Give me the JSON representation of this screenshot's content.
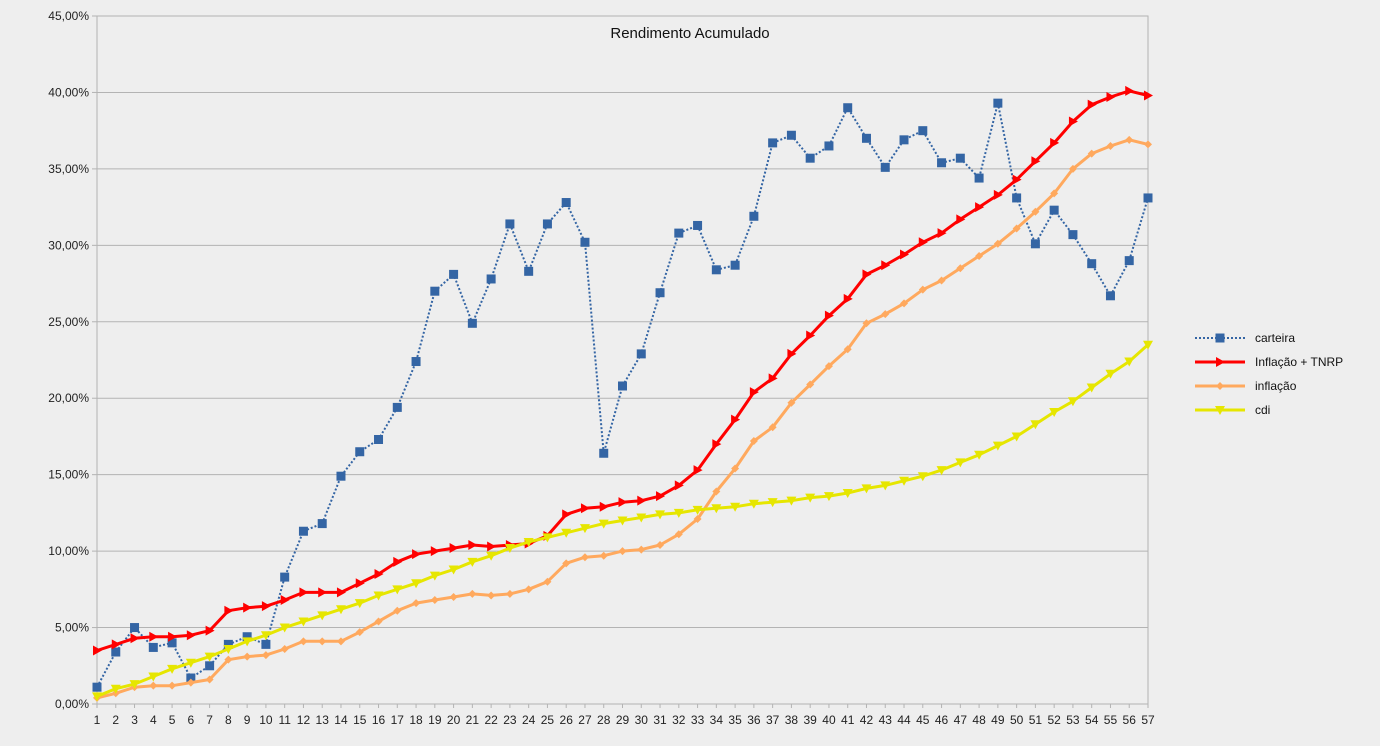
{
  "chart_data": {
    "type": "line",
    "title": "Rendimento Acumulado",
    "xlabel": "",
    "ylabel": "",
    "x": [
      1,
      2,
      3,
      4,
      5,
      6,
      7,
      8,
      9,
      10,
      11,
      12,
      13,
      14,
      15,
      16,
      17,
      18,
      19,
      20,
      21,
      22,
      23,
      24,
      25,
      26,
      27,
      28,
      29,
      30,
      31,
      32,
      33,
      34,
      35,
      36,
      37,
      38,
      39,
      40,
      41,
      42,
      43,
      44,
      45,
      46,
      47,
      48,
      49,
      50,
      51,
      52,
      53,
      54,
      55,
      56,
      57
    ],
    "ylim": [
      0,
      45
    ],
    "y_ticks": [
      0,
      5,
      10,
      15,
      20,
      25,
      30,
      35,
      40,
      45
    ],
    "y_tick_labels": [
      "0,00%",
      "5,00%",
      "10,00%",
      "15,00%",
      "20,00%",
      "25,00%",
      "30,00%",
      "35,00%",
      "40,00%",
      "45,00%"
    ],
    "grid": "horizontal",
    "legend_position": "right",
    "series": [
      {
        "name": "carteira",
        "color": "#3465a4",
        "line_style": "dotted",
        "marker": "square",
        "values": [
          1.1,
          3.4,
          5.0,
          3.7,
          4.0,
          1.7,
          2.5,
          3.9,
          4.4,
          3.9,
          8.3,
          11.3,
          11.8,
          14.9,
          16.5,
          17.3,
          19.4,
          22.4,
          27.0,
          28.1,
          24.9,
          27.8,
          31.4,
          28.3,
          31.4,
          32.8,
          30.2,
          16.4,
          20.8,
          22.9,
          26.9,
          30.8,
          31.3,
          28.4,
          28.7,
          31.9,
          36.7,
          37.2,
          35.7,
          36.5,
          39.0,
          37.0,
          35.1,
          36.9,
          37.5,
          35.4,
          35.7,
          34.4,
          39.3,
          33.1,
          30.1,
          32.3,
          30.7,
          28.8,
          26.7,
          29.0,
          33.1
        ]
      },
      {
        "name": "Inflação + TNRP",
        "color": "#ff0000",
        "line_style": "solid",
        "marker": "triangle-right",
        "values": [
          3.5,
          3.9,
          4.3,
          4.4,
          4.4,
          4.5,
          4.8,
          6.1,
          6.3,
          6.4,
          6.8,
          7.3,
          7.3,
          7.3,
          7.9,
          8.5,
          9.3,
          9.8,
          10.0,
          10.2,
          10.4,
          10.3,
          10.4,
          10.5,
          11.0,
          12.4,
          12.8,
          12.9,
          13.2,
          13.3,
          13.6,
          14.3,
          15.3,
          17.0,
          18.6,
          20.4,
          21.3,
          22.9,
          24.1,
          25.4,
          26.5,
          28.1,
          28.7,
          29.4,
          30.2,
          30.8,
          31.7,
          32.5,
          33.3,
          34.3,
          35.5,
          36.7,
          38.1,
          39.2,
          39.7,
          40.1,
          39.8
        ]
      },
      {
        "name": "inflação",
        "color": "#ffa95e",
        "line_style": "solid",
        "marker": "diamond",
        "values": [
          0.4,
          0.7,
          1.1,
          1.2,
          1.2,
          1.4,
          1.6,
          2.9,
          3.1,
          3.2,
          3.6,
          4.1,
          4.1,
          4.1,
          4.7,
          5.4,
          6.1,
          6.6,
          6.8,
          7.0,
          7.2,
          7.1,
          7.2,
          7.5,
          8.0,
          9.2,
          9.6,
          9.7,
          10.0,
          10.1,
          10.4,
          11.1,
          12.1,
          13.9,
          15.4,
          17.2,
          18.1,
          19.7,
          20.9,
          22.1,
          23.2,
          24.9,
          25.5,
          26.2,
          27.1,
          27.7,
          28.5,
          29.3,
          30.1,
          31.1,
          32.2,
          33.4,
          35.0,
          36.0,
          36.5,
          36.9,
          36.6
        ]
      },
      {
        "name": "cdi",
        "color": "#e6e600",
        "line_style": "solid",
        "marker": "triangle-down",
        "values": [
          0.5,
          1.0,
          1.3,
          1.8,
          2.3,
          2.7,
          3.1,
          3.6,
          4.1,
          4.5,
          5.0,
          5.4,
          5.8,
          6.2,
          6.6,
          7.1,
          7.5,
          7.9,
          8.4,
          8.8,
          9.3,
          9.7,
          10.2,
          10.6,
          10.9,
          11.2,
          11.5,
          11.8,
          12.0,
          12.2,
          12.4,
          12.5,
          12.7,
          12.8,
          12.9,
          13.1,
          13.2,
          13.3,
          13.5,
          13.6,
          13.8,
          14.1,
          14.3,
          14.6,
          14.9,
          15.3,
          15.8,
          16.3,
          16.9,
          17.5,
          18.3,
          19.1,
          19.8,
          20.7,
          21.6,
          22.4,
          23.5
        ]
      }
    ]
  }
}
